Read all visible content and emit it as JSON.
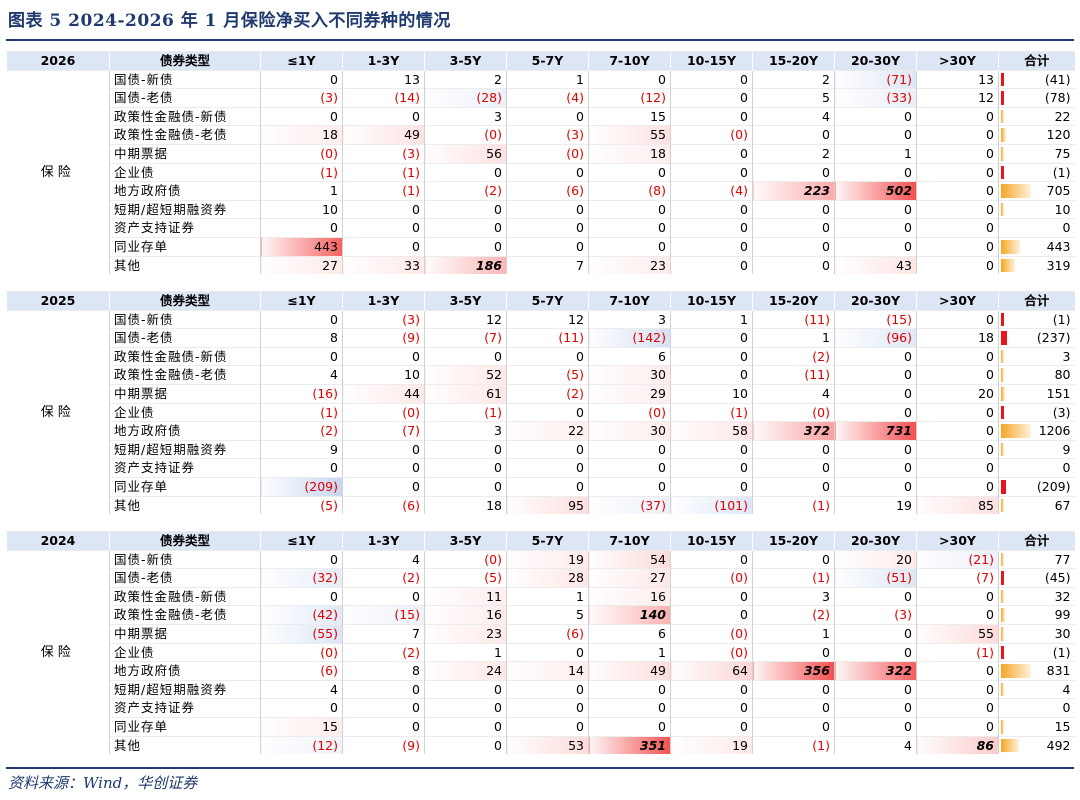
{
  "title": "图表 5 2024-2026 年 1 月保险净买入不同券种的情况",
  "source": "资料来源：Wind，华创证券",
  "columns": [
    "债券类型",
    "≤1Y",
    "1-3Y",
    "3-5Y",
    "5-7Y",
    "7-10Y",
    "10-15Y",
    "15-20Y",
    "20-30Y",
    ">30Y",
    "合计"
  ],
  "sections": [
    {
      "year": "2026",
      "category": "保险",
      "rows": [
        {
          "label": "国债-新债",
          "values": [
            "0",
            "13",
            "2",
            "1",
            "0",
            "0",
            "2",
            "(71)",
            "13",
            "(41)"
          ]
        },
        {
          "label": "国债-老债",
          "values": [
            "(3)",
            "(14)",
            "(28)",
            "(4)",
            "(12)",
            "0",
            "5",
            "(33)",
            "12",
            "(78)"
          ]
        },
        {
          "label": "政策性金融债-新债",
          "values": [
            "0",
            "0",
            "3",
            "0",
            "15",
            "0",
            "4",
            "0",
            "0",
            "22"
          ]
        },
        {
          "label": "政策性金融债-老债",
          "values": [
            "18",
            "49",
            "(0)",
            "(3)",
            "55",
            "(0)",
            "0",
            "0",
            "0",
            "120"
          ]
        },
        {
          "label": "中期票据",
          "values": [
            "(0)",
            "(3)",
            "56",
            "(0)",
            "18",
            "0",
            "2",
            "1",
            "0",
            "75"
          ]
        },
        {
          "label": "企业债",
          "values": [
            "(1)",
            "(1)",
            "0",
            "0",
            "0",
            "0",
            "0",
            "0",
            "0",
            "(1)"
          ]
        },
        {
          "label": "地方政府债",
          "values": [
            "1",
            "(1)",
            "(2)",
            "(6)",
            "(8)",
            "(4)",
            "223",
            "502",
            "0",
            "705"
          ]
        },
        {
          "label": "短期/超短期融资券",
          "values": [
            "10",
            "0",
            "0",
            "0",
            "0",
            "0",
            "0",
            "0",
            "0",
            "10"
          ]
        },
        {
          "label": "资产支持证券",
          "values": [
            "0",
            "0",
            "0",
            "0",
            "0",
            "0",
            "0",
            "0",
            "0",
            "0"
          ]
        },
        {
          "label": "同业存单",
          "values": [
            "443",
            "0",
            "0",
            "0",
            "0",
            "0",
            "0",
            "0",
            "0",
            "443"
          ]
        },
        {
          "label": "其他",
          "values": [
            "27",
            "33",
            "186",
            "7",
            "23",
            "0",
            "0",
            "43",
            "0",
            "319"
          ]
        }
      ]
    },
    {
      "year": "2025",
      "category": "保险",
      "rows": [
        {
          "label": "国债-新债",
          "values": [
            "0",
            "(3)",
            "12",
            "12",
            "3",
            "1",
            "(11)",
            "(15)",
            "0",
            "(1)"
          ]
        },
        {
          "label": "国债-老债",
          "values": [
            "8",
            "(9)",
            "(7)",
            "(11)",
            "(142)",
            "0",
            "1",
            "(96)",
            "18",
            "(237)"
          ]
        },
        {
          "label": "政策性金融债-新债",
          "values": [
            "0",
            "0",
            "0",
            "0",
            "6",
            "0",
            "(2)",
            "0",
            "0",
            "3"
          ]
        },
        {
          "label": "政策性金融债-老债",
          "values": [
            "4",
            "10",
            "52",
            "(5)",
            "30",
            "0",
            "(11)",
            "0",
            "0",
            "80"
          ]
        },
        {
          "label": "中期票据",
          "values": [
            "(16)",
            "44",
            "61",
            "(2)",
            "29",
            "10",
            "4",
            "0",
            "20",
            "151"
          ]
        },
        {
          "label": "企业债",
          "values": [
            "(1)",
            "(0)",
            "(1)",
            "0",
            "(0)",
            "(1)",
            "(0)",
            "0",
            "0",
            "(3)"
          ]
        },
        {
          "label": "地方政府债",
          "values": [
            "(2)",
            "(7)",
            "3",
            "22",
            "30",
            "58",
            "372",
            "731",
            "0",
            "1206"
          ]
        },
        {
          "label": "短期/超短期融资券",
          "values": [
            "9",
            "0",
            "0",
            "0",
            "0",
            "0",
            "0",
            "0",
            "0",
            "9"
          ]
        },
        {
          "label": "资产支持证券",
          "values": [
            "0",
            "0",
            "0",
            "0",
            "0",
            "0",
            "0",
            "0",
            "0",
            "0"
          ]
        },
        {
          "label": "同业存单",
          "values": [
            "(209)",
            "0",
            "0",
            "0",
            "0",
            "0",
            "0",
            "0",
            "0",
            "(209)"
          ]
        },
        {
          "label": "其他",
          "values": [
            "(5)",
            "(6)",
            "18",
            "95",
            "(37)",
            "(101)",
            "(1)",
            "19",
            "85",
            "67"
          ]
        }
      ]
    },
    {
      "year": "2024",
      "category": "保险",
      "rows": [
        {
          "label": "国债-新债",
          "values": [
            "0",
            "4",
            "(0)",
            "19",
            "54",
            "0",
            "0",
            "20",
            "(21)",
            "77"
          ]
        },
        {
          "label": "国债-老债",
          "values": [
            "(32)",
            "(2)",
            "(5)",
            "28",
            "27",
            "(0)",
            "(1)",
            "(51)",
            "(7)",
            "(45)"
          ]
        },
        {
          "label": "政策性金融债-新债",
          "values": [
            "0",
            "0",
            "11",
            "1",
            "16",
            "0",
            "3",
            "0",
            "0",
            "32"
          ]
        },
        {
          "label": "政策性金融债-老债",
          "values": [
            "(42)",
            "(15)",
            "16",
            "5",
            "140",
            "0",
            "(2)",
            "(3)",
            "0",
            "99"
          ]
        },
        {
          "label": "中期票据",
          "values": [
            "(55)",
            "7",
            "23",
            "(6)",
            "6",
            "(0)",
            "1",
            "0",
            "55",
            "30"
          ]
        },
        {
          "label": "企业债",
          "values": [
            "(0)",
            "(2)",
            "1",
            "0",
            "1",
            "(0)",
            "0",
            "0",
            "(1)",
            "(1)"
          ]
        },
        {
          "label": "地方政府债",
          "values": [
            "(6)",
            "8",
            "24",
            "14",
            "49",
            "64",
            "356",
            "322",
            "0",
            "831"
          ]
        },
        {
          "label": "短期/超短期融资券",
          "values": [
            "4",
            "0",
            "0",
            "0",
            "0",
            "0",
            "0",
            "0",
            "0",
            "4"
          ]
        },
        {
          "label": "资产支持证券",
          "values": [
            "0",
            "0",
            "0",
            "0",
            "0",
            "0",
            "0",
            "0",
            "0",
            "0"
          ]
        },
        {
          "label": "同业存单",
          "values": [
            "15",
            "0",
            "0",
            "0",
            "0",
            "0",
            "0",
            "0",
            "0",
            "15"
          ]
        },
        {
          "label": "其他",
          "values": [
            "(12)",
            "(9)",
            "0",
            "53",
            "351",
            "19",
            "(1)",
            "4",
            "86",
            "492"
          ]
        }
      ]
    }
  ],
  "colors": {
    "header_bg": "#dde6f5",
    "positive": "#f23b3b",
    "negative": "#4a78cf",
    "total_pos": "#f5a623",
    "total_neg": "#e8161b",
    "negative_text": "#e00000",
    "accent": "#1f3a6e"
  }
}
